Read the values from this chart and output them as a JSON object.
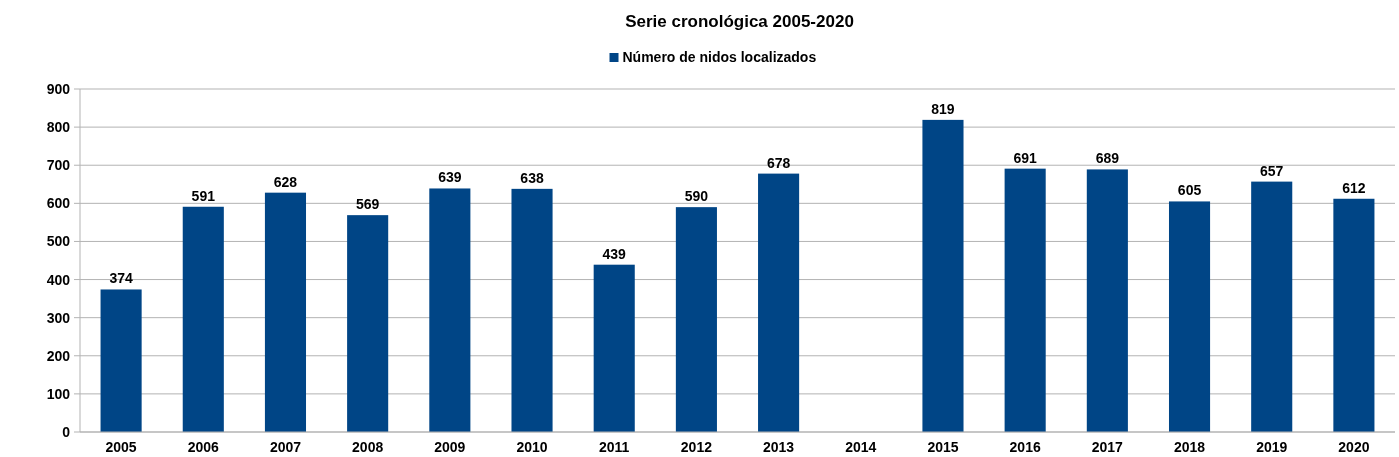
{
  "chart_data": {
    "type": "bar",
    "title": "Serie cronológica 2005-2020",
    "categories": [
      "2005",
      "2006",
      "2007",
      "2008",
      "2009",
      "2010",
      "2011",
      "2012",
      "2013",
      "2014",
      "2015",
      "2016",
      "2017",
      "2018",
      "2019",
      "2020"
    ],
    "series": [
      {
        "name": "Número de nidos localizados",
        "color": "#004586",
        "values": [
          374,
          591,
          628,
          569,
          639,
          638,
          439,
          590,
          678,
          null,
          819,
          691,
          689,
          605,
          657,
          612
        ]
      }
    ],
    "ylim": [
      0,
      900
    ],
    "yticks": [
      0,
      100,
      200,
      300,
      400,
      500,
      600,
      700,
      800,
      900
    ],
    "grid": "y",
    "legend": "top",
    "data_labels": true
  }
}
